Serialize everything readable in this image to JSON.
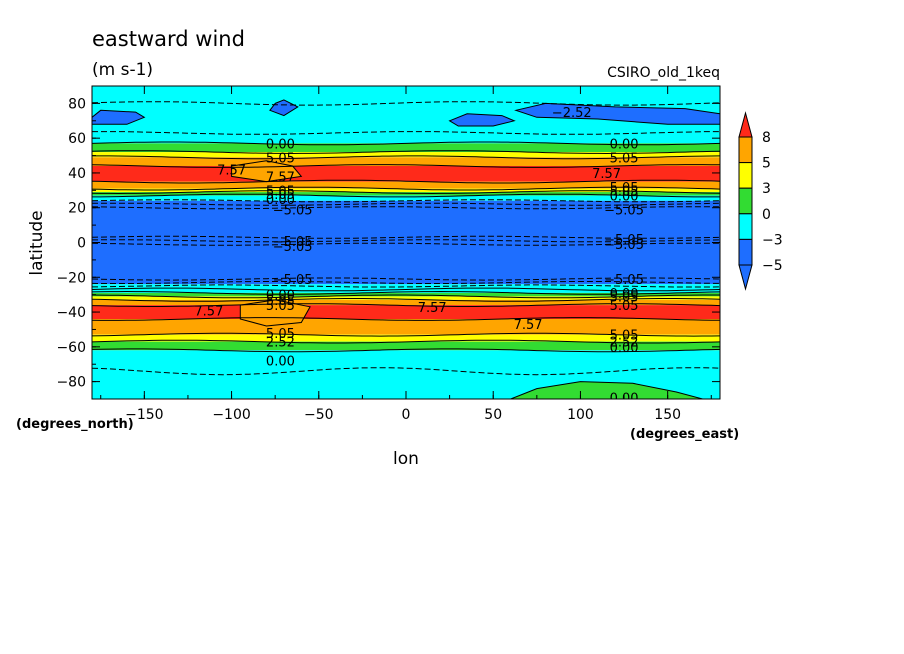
{
  "chart_data": {
    "type": "heatmap",
    "title": "eastward wind",
    "units": "(m s-1)",
    "model_label": "CSIRO_old_1keq",
    "xlabel": "lon",
    "ylabel": "latitude",
    "x_unit_label": "(degrees_east)",
    "y_unit_label": "(degrees_north)",
    "xlim": [
      -180,
      180
    ],
    "ylim": [
      -90,
      90
    ],
    "x_ticks": [
      -150,
      -100,
      -50,
      0,
      50,
      100,
      150
    ],
    "y_ticks": [
      -80,
      -60,
      -40,
      -20,
      0,
      20,
      40,
      60,
      80
    ],
    "x_tick_labels": [
      "−150",
      "−100",
      "−50",
      "0",
      "50",
      "100",
      "150"
    ],
    "y_tick_labels": [
      "−80",
      "−60",
      "−40",
      "−20",
      "0",
      "20",
      "40",
      "60",
      "80"
    ],
    "colorbar": {
      "levels": [
        -5,
        -3,
        0,
        3,
        5,
        8
      ],
      "level_labels": [
        "−5",
        "−3",
        "0",
        "3",
        "5",
        "8"
      ],
      "colors": [
        "#1e6eff",
        "#00ffff",
        "#32dc32",
        "#ffff00",
        "#ffa500",
        "#ff2a1a"
      ],
      "extend": "both"
    },
    "contour_labels": [
      {
        "text": "−2.52",
        "lon": 95,
        "lat": 75
      },
      {
        "text": "0.00",
        "lon": -72,
        "lat": 57
      },
      {
        "text": "5.05",
        "lon": -72,
        "lat": 49
      },
      {
        "text": "7.57",
        "lon": -100,
        "lat": 42
      },
      {
        "text": "7.57",
        "lon": -72,
        "lat": 38
      },
      {
        "text": "5.05",
        "lon": -72,
        "lat": 30
      },
      {
        "text": "5.05",
        "lon": -72,
        "lat": 28
      },
      {
        "text": "0.00",
        "lon": -72,
        "lat": 25
      },
      {
        "text": "−5.05",
        "lon": -65,
        "lat": 19
      },
      {
        "text": "−5.05",
        "lon": -65,
        "lat": 1
      },
      {
        "text": "−5.05",
        "lon": -65,
        "lat": -2
      },
      {
        "text": "−5.05",
        "lon": -65,
        "lat": -21
      },
      {
        "text": "0.00",
        "lon": -72,
        "lat": -30
      },
      {
        "text": "5.05",
        "lon": -72,
        "lat": -33
      },
      {
        "text": "5.05",
        "lon": -72,
        "lat": -36
      },
      {
        "text": "7.57",
        "lon": -113,
        "lat": -39
      },
      {
        "text": "7.57",
        "lon": 15,
        "lat": -37
      },
      {
        "text": "7.57",
        "lon": 70,
        "lat": -47
      },
      {
        "text": "5.05",
        "lon": -72,
        "lat": -52
      },
      {
        "text": "2.52",
        "lon": -72,
        "lat": -57
      },
      {
        "text": "0.00",
        "lon": -72,
        "lat": -68
      },
      {
        "text": "0.00",
        "lon": 125,
        "lat": 57
      },
      {
        "text": "5.05",
        "lon": 125,
        "lat": 49
      },
      {
        "text": "7.57",
        "lon": 115,
        "lat": 40
      },
      {
        "text": "5.05",
        "lon": 125,
        "lat": 32
      },
      {
        "text": "5.05",
        "lon": 125,
        "lat": 30
      },
      {
        "text": "0.00",
        "lon": 125,
        "lat": 27
      },
      {
        "text": "−5.05",
        "lon": 125,
        "lat": 19
      },
      {
        "text": "−5.05",
        "lon": 125,
        "lat": 2
      },
      {
        "text": "−5.05",
        "lon": 125,
        "lat": -1
      },
      {
        "text": "−5.05",
        "lon": 125,
        "lat": -21
      },
      {
        "text": "0.00",
        "lon": 125,
        "lat": -29
      },
      {
        "text": "5.05",
        "lon": 125,
        "lat": -31
      },
      {
        "text": "5.05",
        "lon": 125,
        "lat": -36
      },
      {
        "text": "5.05",
        "lon": 125,
        "lat": -53
      },
      {
        "text": "2.52",
        "lon": 125,
        "lat": -57
      },
      {
        "text": "0.00",
        "lon": 125,
        "lat": -60
      },
      {
        "text": "0.00",
        "lon": 125,
        "lat": -89
      }
    ]
  }
}
